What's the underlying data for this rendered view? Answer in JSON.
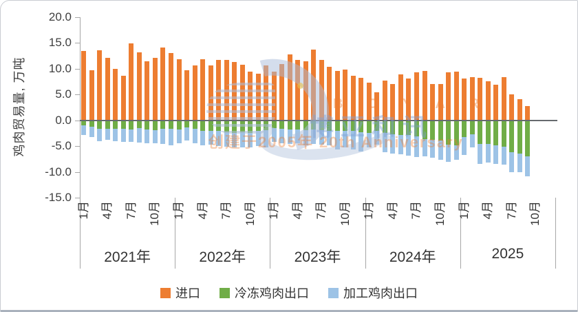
{
  "panel": {
    "background": "#ffffff",
    "border_color": "#c9ccd2"
  },
  "watermark": {
    "brand_latin": "B O Y A R",
    "brand_cn": "博亚和讯",
    "tagline": "创建于2005年 20th Anniversary"
  },
  "chart_data": {
    "type": "bar",
    "stacked": true,
    "title": "",
    "xlabel": "",
    "ylabel": "鸡肉贸易量, 万吨",
    "ylim": [
      -15,
      20
    ],
    "ytick_step": 5,
    "ytick_labels": [
      "20.0",
      "15.0",
      "10.0",
      "5.0",
      "0.0",
      "-5.0",
      "-10.0",
      "-15.0"
    ],
    "grid": false,
    "legend_position": "bottom",
    "month_tick_labels": [
      "1月",
      "4月",
      "7月",
      "10月"
    ],
    "month_tick_indices": [
      0,
      3,
      6,
      9
    ],
    "series_meta": [
      {
        "key": "imports",
        "label": "进口",
        "color": "#ED7D31"
      },
      {
        "key": "frozen",
        "label": "冷冻鸡肉出口",
        "color": "#70AD47"
      },
      {
        "key": "processed",
        "label": "加工鸡肉出口",
        "color": "#9DC3E6"
      }
    ],
    "years": [
      {
        "label": "2021年",
        "imports": [
          13.5,
          9.7,
          13.6,
          12.1,
          10.0,
          8.7,
          14.9,
          13.2,
          11.4,
          12.1,
          14.1,
          13.1
        ],
        "frozen": [
          -1.0,
          -1.3,
          -1.6,
          -1.6,
          -1.7,
          -1.7,
          -1.8,
          -1.5,
          -1.8,
          -1.9,
          -1.6,
          -1.7
        ],
        "processed": [
          -1.9,
          -1.9,
          -2.4,
          -2.2,
          -2.4,
          -2.5,
          -2.4,
          -2.8,
          -2.6,
          -2.6,
          -3.0,
          -3.2
        ]
      },
      {
        "label": "2022年",
        "imports": [
          11.8,
          9.7,
          10.7,
          11.9,
          10.6,
          11.7,
          11.7,
          11.3,
          10.8,
          9.4,
          9.1,
          10.7
        ],
        "frozen": [
          -1.8,
          -1.4,
          -1.7,
          -2.1,
          -2.1,
          -2.1,
          -2.3,
          -2.5,
          -2.3,
          -2.4,
          -2.1,
          -1.9
        ],
        "processed": [
          -2.6,
          -2.5,
          -2.8,
          -2.8,
          -2.6,
          -2.9,
          -2.8,
          -2.8,
          -2.9,
          -2.9,
          -2.9,
          -3.4
        ]
      },
      {
        "label": "2023年",
        "imports": [
          9.4,
          10.9,
          12.8,
          11.7,
          11.5,
          13.7,
          11.7,
          10.4,
          9.6,
          9.8,
          8.7,
          8.3
        ],
        "frozen": [
          -1.5,
          -1.7,
          -1.8,
          -1.8,
          -1.9,
          -1.8,
          -1.9,
          -2.0,
          -2.1,
          -2.0,
          -2.1,
          -2.3
        ],
        "processed": [
          -2.7,
          -2.7,
          -2.8,
          -2.6,
          -2.9,
          -2.8,
          -2.8,
          -2.9,
          -3.5,
          -3.3,
          -3.5,
          -3.7
        ]
      },
      {
        "label": "2024年",
        "imports": [
          7.3,
          5.4,
          7.7,
          7.0,
          8.9,
          8.1,
          9.3,
          9.6,
          7.0,
          7.0,
          9.3,
          9.5
        ],
        "frozen": [
          -2.4,
          -2.0,
          -2.5,
          -2.7,
          -2.8,
          -2.9,
          -3.1,
          -3.7,
          -3.8,
          -3.9,
          -4.7,
          -4.8
        ],
        "processed": [
          -2.8,
          -2.7,
          -3.7,
          -3.7,
          -3.8,
          -4.0,
          -4.0,
          -3.3,
          -3.5,
          -3.7,
          -3.3,
          -2.9
        ]
      },
      {
        "label": "2025",
        "imports": [
          8.1,
          8.4,
          8.2,
          7.6,
          6.9,
          8.4,
          5.0,
          4.1,
          2.8
        ],
        "frozen": [
          -3.3,
          -2.7,
          -4.6,
          -4.6,
          -4.8,
          -5.1,
          -6.2,
          -6.4,
          -7.0
        ],
        "processed": [
          -3.4,
          -2.6,
          -3.8,
          -3.6,
          -3.6,
          -3.5,
          -3.8,
          -3.6,
          -3.9
        ]
      }
    ]
  }
}
